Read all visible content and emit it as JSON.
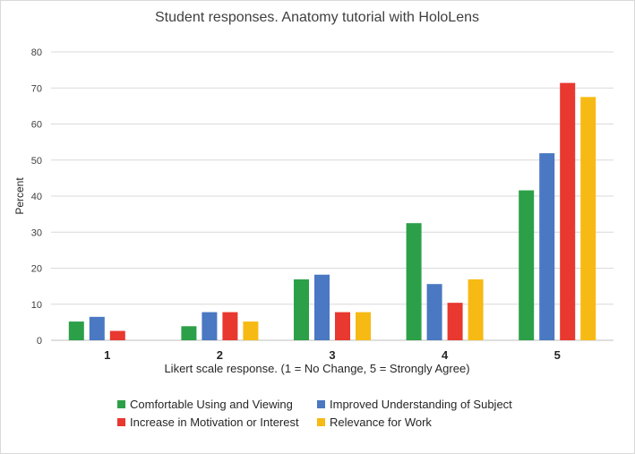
{
  "chart_data": {
    "type": "bar",
    "title": "Student responses. Anatomy tutorial with HoloLens",
    "xlabel": "Likert scale response. (1 = No Change, 5 = Strongly Agree)",
    "ylabel": "Percent",
    "ylim": [
      0,
      80
    ],
    "yticks": [
      0,
      10,
      20,
      30,
      40,
      50,
      60,
      70,
      80
    ],
    "grid": true,
    "legend_position": "bottom",
    "categories": [
      "1",
      "2",
      "3",
      "4",
      "5"
    ],
    "series": [
      {
        "name": "Comfortable Using and Viewing",
        "color": "#2ca048",
        "values": [
          5.2,
          3.9,
          16.9,
          32.5,
          41.6
        ]
      },
      {
        "name": "Improved Understanding of Subject",
        "color": "#4a78c2",
        "values": [
          6.5,
          7.8,
          18.2,
          15.6,
          51.9
        ]
      },
      {
        "name": "Increase in Motivation or Interest",
        "color": "#e8382f",
        "values": [
          2.6,
          7.8,
          7.8,
          10.4,
          71.4
        ]
      },
      {
        "name": "Relevance for Work",
        "color": "#f7ba14",
        "values": [
          0,
          5.2,
          7.8,
          16.9,
          67.5
        ]
      }
    ]
  }
}
